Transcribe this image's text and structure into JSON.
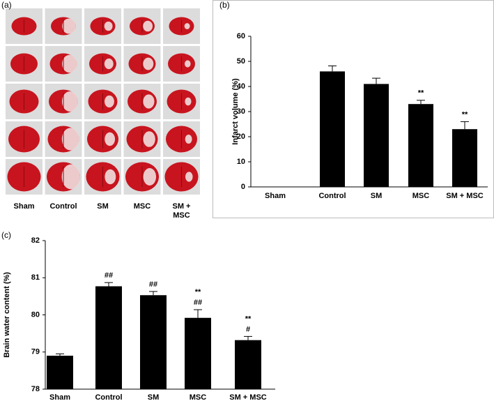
{
  "image_panel": {
    "label": "(a)",
    "columns": [
      "Sham",
      "Control",
      "SM",
      "MSC",
      "SM + MSC"
    ]
  },
  "chart_data": [
    {
      "type": "bar",
      "panel_label": "(b)",
      "y_label": "Infarct volume (%)",
      "categories": [
        "Sham",
        "Control",
        "SM",
        "MSC",
        "SM + MSC"
      ],
      "values": [
        0,
        46,
        41,
        33,
        23
      ],
      "errors": [
        0,
        2.2,
        2.3,
        1.5,
        3
      ],
      "annotations": [
        null,
        null,
        null,
        [
          "**"
        ],
        [
          "**"
        ]
      ],
      "color": "#000000",
      "ylim": [
        0,
        60
      ],
      "yticks": [
        0,
        10,
        20,
        30,
        40,
        50,
        60
      ]
    },
    {
      "type": "bar",
      "panel_label": "(c)",
      "y_label": "Brain water content (%)",
      "categories": [
        "Sham",
        "Control",
        "SM",
        "MSC",
        "SM + MSC"
      ],
      "values": [
        78.9,
        80.77,
        80.53,
        79.92,
        79.32
      ],
      "errors": [
        0.05,
        0.1,
        0.1,
        0.22,
        0.1
      ],
      "annotations": [
        null,
        [
          "##"
        ],
        [
          "##"
        ],
        [
          "**",
          "##"
        ],
        [
          "**",
          "#"
        ]
      ],
      "color": "#000000",
      "ylim": [
        78,
        82
      ],
      "yticks": [
        78,
        79,
        80,
        81,
        82
      ]
    }
  ]
}
